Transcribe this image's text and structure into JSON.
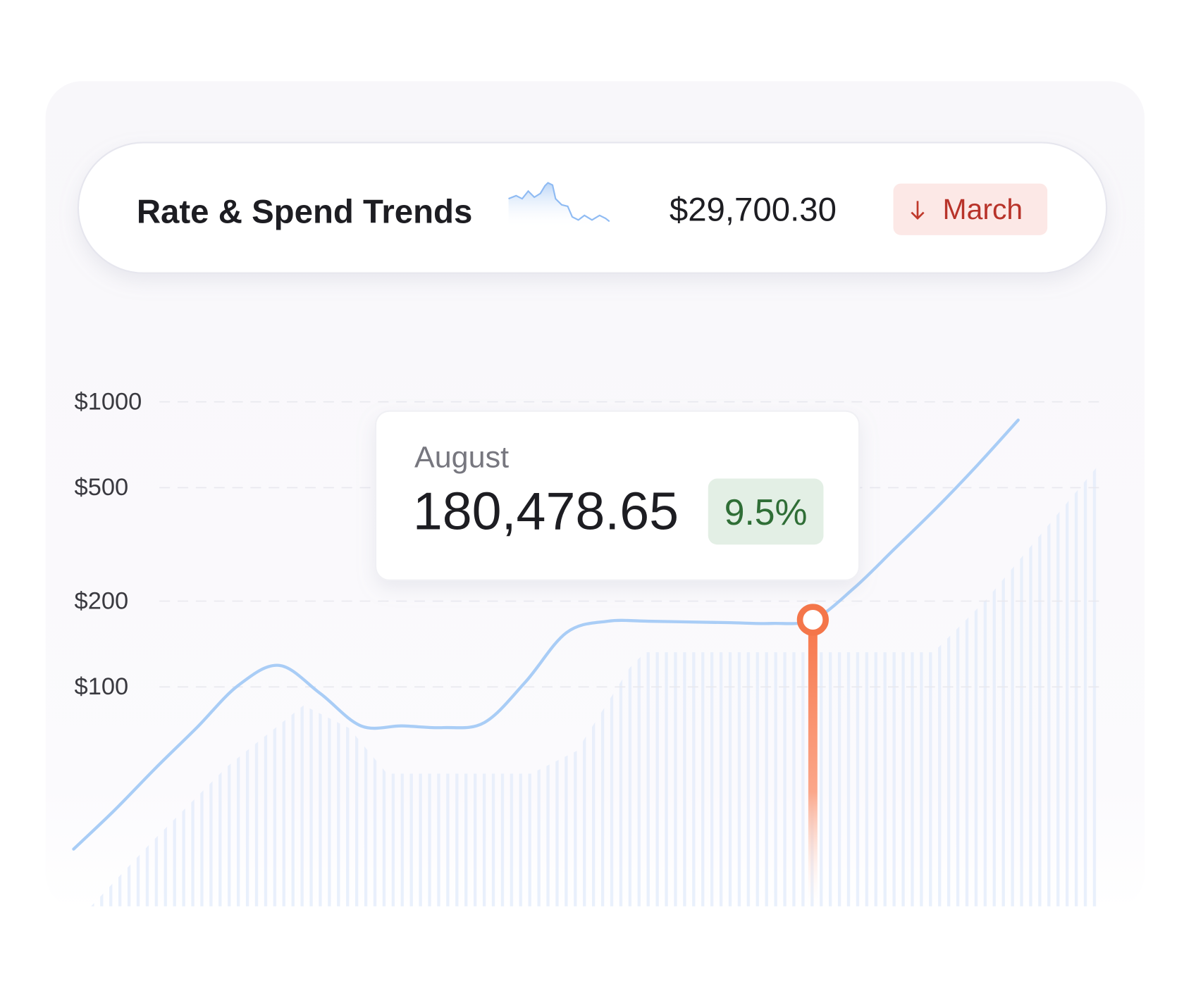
{
  "header": {
    "title": "Rate & Spend Trends",
    "amount": "$29,700.30",
    "badge": "March"
  },
  "tooltip": {
    "label": "August",
    "value": "180,478.65",
    "change": "9.5%"
  },
  "chart_data": {
    "type": "line",
    "color": "#a9cdf6",
    "values": [
      27,
      37,
      52,
      72,
      101,
      119,
      95,
      73,
      73,
      72,
      75,
      104,
      155,
      170,
      170,
      169,
      168,
      167,
      172,
      222,
      306,
      423,
      598,
      863
    ],
    "ylim": [
      17,
      1200
    ],
    "log_scale": true,
    "grid": true,
    "yticks": [
      {
        "value": 1000,
        "label": "$1000"
      },
      {
        "value": 500,
        "label": "$500"
      },
      {
        "value": 200,
        "label": "$200"
      },
      {
        "value": 100,
        "label": "$100"
      }
    ]
  }
}
